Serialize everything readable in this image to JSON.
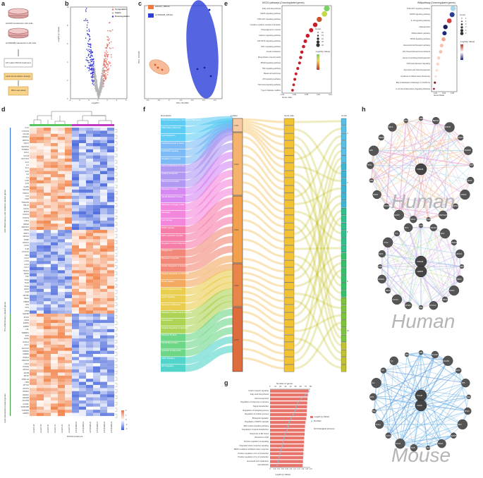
{
  "panels": {
    "a": "a",
    "b": "b",
    "c": "c",
    "d": "d",
    "e": "e",
    "f": "f",
    "g": "g",
    "h": "h"
  },
  "panel_a": {
    "steps": [
      "AcGFP transfection L02 cells",
      "AcTRIM28 transfection L02 cells",
      "18 h after PA/OA treatment",
      "Lipid accumulation assays",
      "RNA-seq assay"
    ]
  },
  "panel_b": {
    "legend": [
      "Upregulation",
      "Stable",
      "Downregulation"
    ],
    "colors": [
      "#e8746a",
      "#b5b5b5",
      "#3b3bd6"
    ],
    "xlabel": "Log2FC",
    "ylabel": "-Log10 (p Value)",
    "xticks": [
      "-6",
      "-4",
      "-2",
      "0",
      "2",
      "4",
      "6"
    ],
    "yticks": [
      "0",
      "2",
      "4",
      "6",
      "8",
      "10"
    ]
  },
  "panel_c": {
    "legend": [
      "AcGFP_18hOA",
      "AcTRIM28_18hOA"
    ],
    "colors": [
      "#f07a3c",
      "#2a3fd9"
    ],
    "xlabel": "PC1: 52.05%",
    "ylabel": "PC2: 16.03%",
    "xticks": [
      "-0.2",
      "-0.1",
      "0",
      "0.1",
      "0.2",
      "0.3",
      "0.4"
    ]
  },
  "panel_e_left": {
    "title": "KEGG pathways (Downregulated genes)",
    "xlabel": "Gene ratio",
    "xticks": [
      "0.04",
      "0.06",
      "0.08",
      "0.10",
      "0.12"
    ],
    "pathways": [
      "Fatty acid biosynthesis",
      "MAPK signaling pathway",
      "PI3K-AKT signaling pathway",
      "Cytokine-cytokine receptor interaction",
      "Proteoglycans in cancer",
      "Calcium signaling pathway",
      "JAK-STAT signaling pathway",
      "HIF-1 signaling pathway",
      "Insulin resistance",
      "Biosynthesis of amino acids",
      "PPAR signaling pathway",
      "TNF signaling pathway",
      "Basal cell carcinoma",
      "p53 signaling pathway",
      "TGF-beta signaling pathway",
      "Type II diabetes mellitus"
    ],
    "legend_count_title": "Count",
    "legend_count": [
      "10",
      "15",
      "20",
      "25",
      "30"
    ],
    "legend_p_title": "-Log10(p Value)"
  },
  "panel_e_right": {
    "title": "Wikipathway (Downregulated genes)",
    "xlabel": "Gene Ratio",
    "xticks": [
      "0.02",
      "0.04",
      "0.06"
    ],
    "pathways": [
      "PI3K-AKT signaling pathway",
      "MAPK signaling pathway",
      "IL-18 signaling pathway",
      "Adipogenesis",
      "Differentiation pathway",
      "PPAR signaling pathway",
      "Glucocorticoid Receptor pathway",
      "p53 Transcriptional Gene Network",
      "Genes Controlling Nephrogenesis",
      "TGF-beta Receptor Signaling",
      "Glycolysis and Gluconeogenesis",
      "Cytokines & Inflammatory Response",
      "Bile & Metabolism Pathways in COVID-19",
      "IL-10 Anti-inflammatory Signaling Pathway"
    ],
    "legend_count_title": "Count",
    "legend_count": [
      "1",
      "2",
      "3",
      "4",
      "5",
      "6"
    ],
    "legend_p_title": "-Log10(p Value)"
  },
  "panel_d": {
    "xlabel": "PA/OA treatment",
    "samples": [
      "AcGFP-18",
      "AcGFP-19",
      "AcGFP-20",
      "AcGFP-21",
      "AcGFP-22",
      "AcGFP-24",
      "AcTRIM28-18",
      "AcTRIM28-19",
      "AcTRIM28-20",
      "AcTRIM28-21",
      "AcTRIM28-22",
      "AcTRIM28-24"
    ],
    "groups": [
      "Anti-inflammatory and oxidative-related genes",
      "Pro-inflammatory-related genes",
      "Lipid metabolism-related genes"
    ],
    "scale": [
      "2",
      "1",
      "0",
      "-1",
      "-2"
    ],
    "genes": [
      "IL1C",
      "CYP2C9",
      "CFLAR",
      "NFE2L2",
      "HMOX1",
      "NQO1",
      "SQSTM1",
      "TXNRD1",
      "GCLC",
      "GCLM",
      "SLC7A11",
      "IL13",
      "IL1",
      "IL17",
      "IL10",
      "IL2",
      "IL4",
      "IL6R",
      "IL33",
      "IL1RN",
      "SOCS3",
      "PRDX1",
      "CAT",
      "GSR",
      "TNFAIP3",
      "TBL1X",
      "KLF10",
      "EGFR",
      "FOXO1",
      "FOXO3",
      "CHD1",
      "MDM2",
      "MAP3K7",
      "TRIM9",
      "SMIT1",
      "NR4A1",
      "TXNIP",
      "HDAC2",
      "COX2",
      "IL1B",
      "CXCL10",
      "IRF1",
      "CCL2",
      "LCN2",
      "CCL5",
      "CCL7",
      "TRAF1",
      "NOD2",
      "TNF",
      "TLR2",
      "TLR4",
      "CD40",
      "IL6ST",
      "IL18",
      "NFKB1",
      "RELA",
      "IKBKB",
      "JUN",
      "FOS",
      "ATF3",
      "MAPK8",
      "PLIN2",
      "CD36",
      "FABP1",
      "FABP4",
      "LPL",
      "SREBF1",
      "SCD",
      "FASN",
      "ACACA",
      "ACLY",
      "ELOVL6",
      "PPARG",
      "CEBPA",
      "INSIG1",
      "HMGCR",
      "LDLR",
      "PCSK9",
      "APOA1",
      "APOB",
      "MTTP",
      "PNPLA3",
      "LIPE",
      "CPT1A",
      "ACOX1",
      "PPARA",
      "HADHA",
      "HADHB",
      "ACADM",
      "ACADL",
      "FAM134B",
      "TM4SF5",
      "HEBP1"
    ]
  },
  "panel_f": {
    "axis_titles": [
      "Description",
      "p Value",
      "Gene ratio",
      "Count"
    ],
    "descriptions": [
      "ATF4 Activated Genes in Response to ER Stress",
      "Inflammatory Response",
      "Lipid Metabolism",
      "Cellular Response to Stress",
      "CAMP/PKA signaling",
      "Regulation of Apoptosis",
      "Fatty Acid Metabolic Process",
      "Cytokine Production",
      "Glucose Homeostasis",
      "Response to Insulin",
      "Steroid Metabolic Process",
      "Response to Oxygen Levels",
      "Autophagy",
      "Lipid Storage",
      "MAPK Cascade",
      "ERK1 and ERK2 Cascade",
      "Regulation of Cell Proliferation",
      "Angiogenesis",
      "Response to Hypoxia",
      "Positive Regulation of Apoptosis",
      "Negative Regulation of Cell Death",
      "Wound Healing",
      "Immune System Process",
      "Insulin Signaling",
      "Response to Wounding",
      "Regulation of Inflammatory Response",
      "Cell Adhesion",
      "Negative Regulation of Signaling",
      "Glycolytic Process",
      "Steroid Biosynthesis",
      "Synthesis of Fatty Acids",
      "VEGF Signaling",
      "WNT Signaling"
    ],
    "pvalue_ticks": [
      "0.001",
      "0.002",
      "0.003",
      "0.004",
      "0.005"
    ],
    "count_ticks": [
      "2",
      "4",
      "6",
      "8",
      "10"
    ]
  },
  "panel_g": {
    "top_label": "Number of genes",
    "top_ticks": [
      "0",
      "10",
      "20",
      "30",
      "40",
      "50",
      "60",
      "70",
      "80"
    ],
    "bottom_label": "-Log10 (p Value)",
    "bottom_ticks": [
      "0",
      "0.2",
      "0.4",
      "0.6",
      "0.8",
      "1.0",
      "1.2",
      "1.4",
      "1.6",
      "1.8",
      "2.0"
    ],
    "legend": [
      "-Log10 (p Value)",
      "Number",
      "GO biological process"
    ],
    "terms": [
      "Insulin receptor signaling",
      "Fatty acid biosynthesis",
      "Gluconeogenesis",
      "Regulation of response to stimulus",
      "Signal transduction",
      "Regulation of biological process",
      "Regulation of cellular process",
      "Biological regulation",
      "Regulation of MAPK cascade",
      "IER nucleus signaling pathway",
      "Regulation of signal transduction",
      "Response to ER stress",
      "Response to lipid",
      "Positive regulation of signaling",
      "Integrated stress response signaling",
      "PERK-mediated unfolded protein response",
      "Positive regulation of IL-12 production",
      "Positive regulation of IL-12 production",
      "Aminoacid and metabolism",
      "Cell adhesion"
    ],
    "values": [
      1.92,
      1.88,
      1.86,
      1.85,
      1.84,
      1.83,
      1.82,
      1.8,
      1.76,
      1.74,
      1.73,
      1.72,
      1.7,
      1.69,
      1.68,
      1.67,
      1.66,
      1.65,
      1.64,
      1.62
    ],
    "counts": [
      78,
      70,
      62,
      55,
      52,
      50,
      46,
      42,
      38,
      36,
      34,
      30,
      28,
      26,
      24,
      22,
      20,
      18,
      16,
      14
    ]
  },
  "panel_h": {
    "watermarks": [
      "Human",
      "Human",
      "Mouse"
    ],
    "net1_center": [
      "TRIM28"
    ],
    "net1_nodes": [
      "CEBPB",
      "BECN1",
      "PHF10",
      "MAP3K7",
      "KDM5B",
      "SOX2",
      "EZH2",
      "CASP3",
      "HIF1A",
      "MAP1LC3B",
      "PHB2",
      "CDH1",
      "EGFR",
      "SP100",
      "CBX5",
      "ZNF",
      "TP53",
      "JUN",
      "MDM2",
      "E2F1",
      "ATF4"
    ],
    "net2_center": [
      "TRIM28",
      "CEBPB"
    ],
    "net2_nodes": [
      "KLF5",
      "SMAD3",
      "MAX",
      "ZNF263",
      "HDAC1",
      "SETDB1",
      "CBX3",
      "SIRT1",
      "NR3C1",
      "NCOA2",
      "RELA",
      "EP300",
      "FOXA1",
      "HNF4A",
      "PPARG",
      "ESR1",
      "E2F1",
      "CTCF",
      "YY1",
      "MYC"
    ],
    "net3_center": [
      "Trim28",
      "Cebpb"
    ],
    "net3_nodes": [
      "Atf4",
      "Smad3",
      "Kdm5b",
      "Ezh2",
      "Klf5",
      "Rela",
      "Nr3c1",
      "Sirt1",
      "Ep300",
      "Hdac1",
      "Setdb1",
      "Cbx5",
      "Foxa1",
      "Hnf4a",
      "Pparg",
      "Myc",
      "E2f1",
      "Jun",
      "Ctcf",
      "Yy1",
      "Mdm2"
    ]
  }
}
